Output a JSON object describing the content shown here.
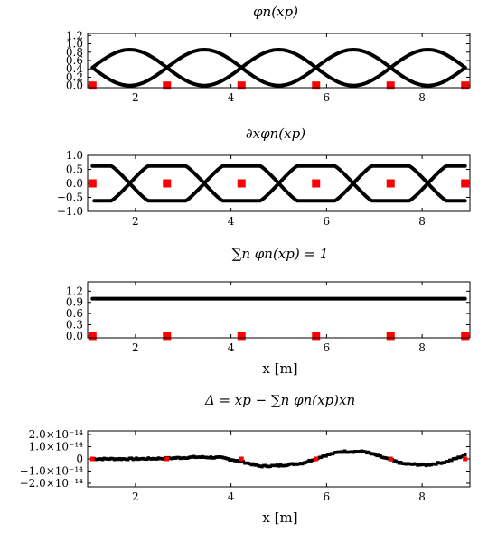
{
  "chart_data": [
    {
      "id": "phi",
      "type": "line",
      "title": "φn(xp)",
      "xlabel": "",
      "ylabel": "",
      "xlim": [
        1.0,
        9.0
      ],
      "ylim": [
        -0.05,
        1.25
      ],
      "xticks": [
        2,
        4,
        6,
        8
      ],
      "xtick_labels": [
        "2",
        "4",
        "6",
        "8"
      ],
      "yticks": [
        0.0,
        0.2,
        0.4,
        0.6,
        0.8,
        1.0,
        1.2
      ],
      "ytick_labels": [
        "0.0",
        "0.2",
        "0.4",
        "0.6",
        "0.8",
        "1.0",
        "1.2"
      ],
      "nodes": [
        1.1,
        2.66,
        4.22,
        5.78,
        7.34,
        8.9
      ],
      "curve": "basis",
      "series_color": "#000000",
      "marker_color": "#ff0000"
    },
    {
      "id": "dphi",
      "type": "line",
      "title": "∂xφn(xp)",
      "xlabel": "",
      "ylabel": "",
      "xlim": [
        1.0,
        9.0
      ],
      "ylim": [
        -1.0,
        1.0
      ],
      "xticks": [
        2,
        4,
        6,
        8
      ],
      "xtick_labels": [
        "2",
        "4",
        "6",
        "8"
      ],
      "yticks": [
        -1.0,
        -0.5,
        0.0,
        0.5,
        1.0
      ],
      "ytick_labels": [
        "−1.0",
        "−0.5",
        "0.0",
        "0.5",
        "1.0"
      ],
      "nodes": [
        1.1,
        2.66,
        4.22,
        5.78,
        7.34,
        8.9
      ],
      "curve": "derivative",
      "series_color": "#000000",
      "marker_color": "#ff0000"
    },
    {
      "id": "sum",
      "type": "line",
      "title": "∑n φn(xp) = 1",
      "xlabel": "x [m]",
      "ylabel": "",
      "xlim": [
        1.0,
        9.0
      ],
      "ylim": [
        -0.05,
        1.45
      ],
      "xticks": [
        2,
        4,
        6,
        8
      ],
      "xtick_labels": [
        "2",
        "4",
        "6",
        "8"
      ],
      "yticks": [
        0.0,
        0.3,
        0.6,
        0.9,
        1.2
      ],
      "ytick_labels": [
        "0.0",
        "0.3",
        "0.6",
        "0.9",
        "1.2"
      ],
      "nodes": [
        1.1,
        2.66,
        4.22,
        5.78,
        7.34,
        8.9
      ],
      "curve": "constant",
      "value": 1.0,
      "series_color": "#000000",
      "marker_color": "#ff0000"
    },
    {
      "id": "delta",
      "type": "scatter",
      "title": "Δ = xp − ∑n φn(xp)xn",
      "xlabel": "x [m]",
      "ylabel": "",
      "xlim": [
        1.0,
        9.0
      ],
      "ylim": [
        -2.3e-14,
        2.3e-14
      ],
      "xticks": [
        2,
        4,
        6,
        8
      ],
      "xtick_labels": [
        "2",
        "4",
        "6",
        "8"
      ],
      "yticks": [
        -2e-14,
        -1e-14,
        0,
        1e-14,
        2e-14
      ],
      "ytick_labels": [
        "−2.0×10⁻¹⁴",
        "−1.0×10⁻¹⁴",
        "0",
        "1.0×10⁻¹⁴",
        "2.0×10⁻¹⁴"
      ],
      "nodes": [
        1.1,
        2.66,
        4.22,
        5.78,
        7.34,
        8.9
      ],
      "curve": "error",
      "error_profile": [
        [
          1.1,
          0.0
        ],
        [
          2.0,
          0.0
        ],
        [
          2.7,
          5e-16
        ],
        [
          3.3,
          1.5e-15
        ],
        [
          3.8,
          1e-15
        ],
        [
          4.2,
          -2e-15
        ],
        [
          4.6,
          -6e-15
        ],
        [
          5.0,
          -5.5e-15
        ],
        [
          5.5,
          -3.5e-15
        ],
        [
          5.9,
          2e-15
        ],
        [
          6.3,
          6e-15
        ],
        [
          6.8,
          6e-15
        ],
        [
          7.2,
          1e-15
        ],
        [
          7.6,
          -4e-15
        ],
        [
          8.1,
          -5e-15
        ],
        [
          8.5,
          -2.5e-15
        ],
        [
          8.9,
          3e-15
        ]
      ],
      "series_color": "#000000",
      "marker_color": "#ff0000"
    }
  ]
}
